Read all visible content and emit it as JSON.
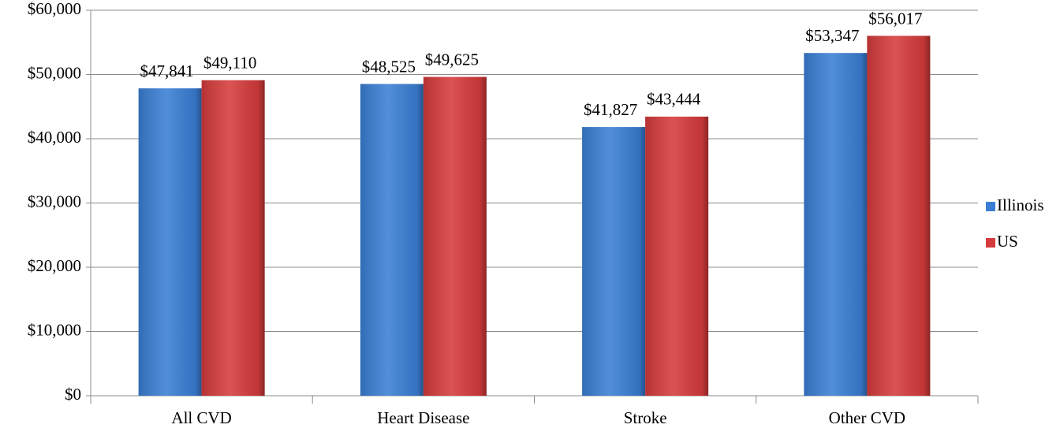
{
  "chart_data": {
    "type": "bar",
    "categories": [
      "All CVD",
      "Heart Disease",
      "Stroke",
      "Other CVD"
    ],
    "series": [
      {
        "name": "Illinois",
        "color": "#3a7fd5",
        "values": [
          47841,
          48525,
          41827,
          53347
        ],
        "value_labels": [
          "$47,841",
          "$48,525",
          "$41,827",
          "$53,347"
        ]
      },
      {
        "name": "US",
        "color": "#d63b3b",
        "values": [
          49110,
          49625,
          43444,
          56017
        ],
        "value_labels": [
          "$49,110",
          "$49,625",
          "$43,444",
          "$56,017"
        ]
      }
    ],
    "ylim": [
      0,
      60000
    ],
    "yticks": [
      {
        "value": 0,
        "label": "$0"
      },
      {
        "value": 10000,
        "label": "$10,000"
      },
      {
        "value": 20000,
        "label": "$20,000"
      },
      {
        "value": 30000,
        "label": "$30,000"
      },
      {
        "value": 40000,
        "label": "$40,000"
      },
      {
        "value": 50000,
        "label": "$50,000"
      },
      {
        "value": 60000,
        "label": "$60,000"
      }
    ],
    "grid": true,
    "legend": "right"
  }
}
